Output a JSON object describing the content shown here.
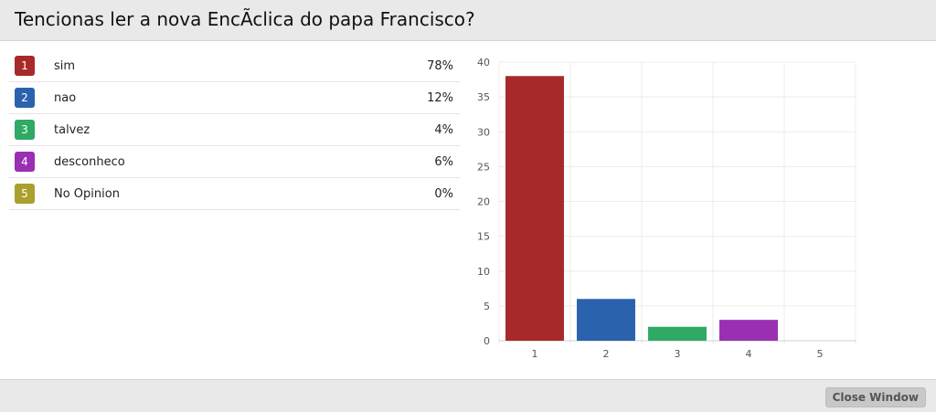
{
  "header": {
    "title": "Tencionas ler a nova EncÃclica do papa Francisco?"
  },
  "options": [
    {
      "num": "1",
      "label": "sim",
      "pct": "78%",
      "color": "#a8292a"
    },
    {
      "num": "2",
      "label": "nao",
      "pct": "12%",
      "color": "#2a62ae"
    },
    {
      "num": "3",
      "label": "talvez",
      "pct": "4%",
      "color": "#2eaa65"
    },
    {
      "num": "4",
      "label": "desconheco",
      "pct": "6%",
      "color": "#9a2fb3"
    },
    {
      "num": "5",
      "label": "No Opinion",
      "pct": "0%",
      "color": "#a9a02d"
    }
  ],
  "chart_data": {
    "type": "bar",
    "categories": [
      "1",
      "2",
      "3",
      "4",
      "5"
    ],
    "values": [
      38,
      6,
      2,
      3,
      0
    ],
    "colors": [
      "#a8292a",
      "#2a62ae",
      "#2eaa65",
      "#9a2fb3",
      "#a9a02d"
    ],
    "yticks": [
      "0",
      "5",
      "10",
      "15",
      "20",
      "25",
      "30",
      "35",
      "40"
    ],
    "ylim": [
      0,
      40
    ],
    "grid": true,
    "title": "",
    "xlabel": "",
    "ylabel": ""
  },
  "footer": {
    "close_label": "Close Window"
  }
}
